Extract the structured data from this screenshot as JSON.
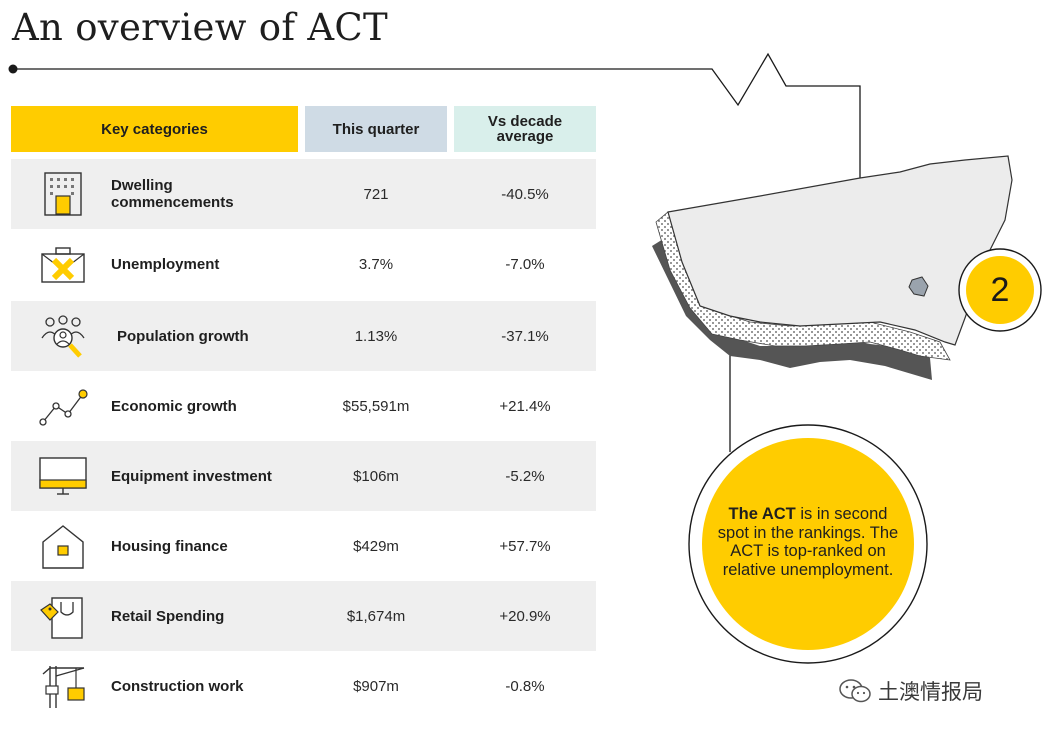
{
  "title": "An overview of ACT",
  "header": {
    "key_categories": "Key categories",
    "this_quarter": "This quarter",
    "vs_decade_average": "Vs decade average"
  },
  "rows": [
    {
      "icon": "building-icon",
      "label": "Dwelling commencements",
      "this_quarter": "721",
      "vs_decade_average": "-40.5%"
    },
    {
      "icon": "briefcase-icon",
      "label": "Unemployment",
      "this_quarter": "3.7%",
      "vs_decade_average": "-7.0%"
    },
    {
      "icon": "people-magnifier-icon",
      "label": "Population growth",
      "this_quarter": "1.13%",
      "vs_decade_average": "-37.1%"
    },
    {
      "icon": "trend-line-icon",
      "label": "Economic growth",
      "this_quarter": "$55,591m",
      "vs_decade_average": "+21.4%"
    },
    {
      "icon": "monitor-icon",
      "label": "Equipment investment",
      "this_quarter": "$106m",
      "vs_decade_average": "-5.2%"
    },
    {
      "icon": "house-icon",
      "label": "Housing finance",
      "this_quarter": "$429m",
      "vs_decade_average": "+57.7%"
    },
    {
      "icon": "shopping-bag-icon",
      "label": "Retail Spending",
      "this_quarter": "$1,674m",
      "vs_decade_average": "+20.9%"
    },
    {
      "icon": "crane-icon",
      "label": "Construction work",
      "this_quarter": "$907m",
      "vs_decade_average": "-0.8%"
    }
  ],
  "rank": "2",
  "callout": {
    "bold": "The ACT",
    "text": " is in second spot in the rankings. The ACT is top-ranked on relative unemployment."
  },
  "watermark": "土澳情报局",
  "colors": {
    "accent_yellow": "#ffcc00",
    "header_blue": "#cfdbe5",
    "header_mint": "#d9efeb",
    "row_shade": "#efefef",
    "map_fill": "#ececec",
    "map_shadow": "#5a5a5a"
  }
}
